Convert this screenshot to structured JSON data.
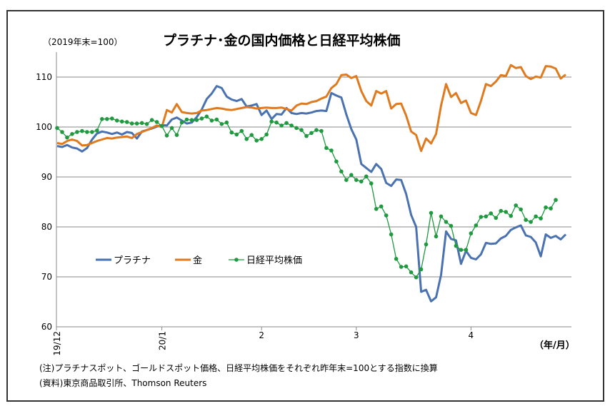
{
  "chart_data": {
    "type": "line",
    "title": "プラチナ･金の国内価格と日経平均株価",
    "subtitle": "（2019年末=100）",
    "x_unit_label": "（年/月）",
    "x_ticks": [
      "19/12",
      "20/1",
      "2",
      "3",
      "4"
    ],
    "ylim": [
      60,
      115
    ],
    "y_ticks": [
      60,
      70,
      80,
      90,
      100,
      110
    ],
    "grid": true,
    "legend_position": "center-left",
    "series": [
      {
        "name": "プラチナ",
        "color": "#4a72b0",
        "values": [
          96.2,
          96,
          96.4,
          95.9,
          95.7,
          95.1,
          95.8,
          97.5,
          98.7,
          99.1,
          98.9,
          98.6,
          98.9,
          98.5,
          99,
          98.8,
          97.7,
          99.1,
          99.4,
          99.7,
          100.1,
          100.4,
          100.3,
          101.5,
          101.9,
          101.3,
          100.7,
          100.9,
          102,
          103.5,
          105.6,
          106.7,
          108.2,
          107.8,
          106.1,
          105.5,
          105.2,
          105.6,
          104.1,
          104.3,
          104.6,
          102.4,
          103.3,
          101.6,
          102.6,
          102.5,
          103.8,
          102.8,
          102.6,
          102.8,
          102.7,
          102.9,
          103.2,
          103.3,
          103.2,
          106.8,
          106.3,
          105.9,
          102.5,
          99.6,
          97.5,
          92.6,
          91.8,
          91,
          92.6,
          91.6,
          88.8,
          88.2,
          89.5,
          89.4,
          86.6,
          82.4,
          80,
          67,
          67.4,
          65.1,
          65.9,
          70.4,
          79.1,
          77.6,
          77.3,
          72.6,
          75.2,
          73.8,
          73.5,
          74.5,
          76.8,
          76.6,
          76.7,
          77.7,
          78.2,
          79.4,
          79.9,
          80.3,
          78.3,
          78,
          76.9,
          74.1,
          78.5,
          77.8,
          78.2,
          77.5,
          78.5
        ]
      },
      {
        "name": "金",
        "color": "#e07a1f",
        "values": [
          96.8,
          96.6,
          97.2,
          97.5,
          97.2,
          96.3,
          96.4,
          96.8,
          97.2,
          97.5,
          97.8,
          97.7,
          97.9,
          98,
          98.1,
          97.8,
          98.6,
          99,
          99.4,
          99.8,
          100.3,
          100,
          103.4,
          102.9,
          104.6,
          103,
          102.8,
          102.7,
          102.8,
          103.3,
          103.4,
          103.6,
          103.8,
          103.7,
          103.5,
          103.4,
          103.6,
          103.8,
          104,
          103.9,
          103.7,
          103.8,
          103.9,
          103.8,
          103.8,
          103.9,
          103.6,
          103.3,
          104.3,
          104.7,
          104.6,
          105,
          105.2,
          105.7,
          106.1,
          107.8,
          108.6,
          110.4,
          110.5,
          109.8,
          110.2,
          107.2,
          105.2,
          104.3,
          107.2,
          106.7,
          107.2,
          103.7,
          104.6,
          104.7,
          102.3,
          99.1,
          98.4,
          95.2,
          97.7,
          96.7,
          98.6,
          104.3,
          108.6,
          106,
          106.8,
          104.8,
          105.3,
          102.8,
          102.4,
          105.2,
          108.6,
          108.2,
          109.1,
          110.4,
          110.2,
          112.4,
          111.8,
          112,
          110.2,
          109.6,
          110.1,
          109.9,
          112.2,
          112.1,
          111.7,
          109.7,
          110.5
        ]
      },
      {
        "name": "日経平均株価",
        "color": "#1f9a3f",
        "values": [
          99.8,
          99,
          97.9,
          98.6,
          99,
          99.2,
          99,
          99,
          99.3,
          101.6,
          101.6,
          101.7,
          101.3,
          101.1,
          101,
          100.7,
          100.7,
          100.8,
          100.6,
          101.4,
          101,
          100.2,
          98.3,
          99.8,
          98.4,
          100.9,
          101.5,
          101.4,
          101.4,
          101.7,
          102.1,
          101.3,
          101.5,
          100.6,
          100.9,
          98.9,
          98.5,
          99.2,
          97.6,
          98.4,
          97.3,
          97.6,
          98.5,
          101.1,
          100.9,
          100.3,
          100.8,
          100.3,
          99.8,
          99.4,
          98.2,
          98.8,
          99.4,
          99.2,
          95.8,
          95.3,
          93.1,
          91.1,
          89.4,
          90.4,
          89.4,
          89.1,
          90.1,
          88.7,
          83.6,
          84.1,
          82.3,
          78.5,
          73.6,
          72,
          72.1,
          70.9,
          69.9,
          71.5,
          76.5,
          82.8,
          78.1,
          82.1,
          81,
          80.2,
          76.2,
          75.4,
          75.4,
          78.7,
          80.3,
          82,
          82.1,
          82.7,
          81.8,
          83.2,
          83,
          82.2,
          84.3,
          83.5,
          81.4,
          81,
          82.1,
          81.7,
          83.9,
          83.7,
          85.4
        ]
      }
    ]
  },
  "notes": [
    "(注)プラチナスポット、ゴールドスポット価格、日経平均株価をそれぞれ昨年末=100とする指数に換算",
    "(資料)東京商品取引所、Thomson Reuters"
  ]
}
